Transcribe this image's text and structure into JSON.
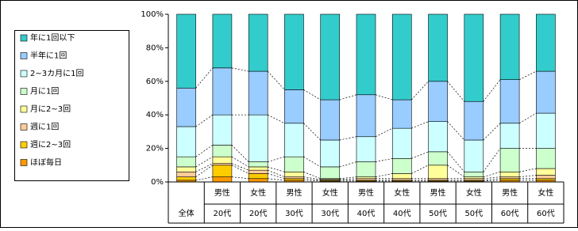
{
  "chart_data": {
    "type": "stacked_bar_100",
    "categories": [
      [
        "全体"
      ],
      [
        "男性",
        "20代"
      ],
      [
        "女性",
        "20代"
      ],
      [
        "男性",
        "30代"
      ],
      [
        "女性",
        "30代"
      ],
      [
        "男性",
        "40代"
      ],
      [
        "女性",
        "40代"
      ],
      [
        "男性",
        "50代"
      ],
      [
        "女性",
        "50代"
      ],
      [
        "男性",
        "60代"
      ],
      [
        "女性",
        "60代"
      ]
    ],
    "series": [
      {
        "name": "ほぼ毎日",
        "color": "#ff9900",
        "values": [
          1,
          3,
          2,
          1,
          0.5,
          0.5,
          0.5,
          0.5,
          0.5,
          1,
          1
        ]
      },
      {
        "name": "週に2~3回",
        "color": "#ffcc00",
        "values": [
          2,
          7,
          3,
          1,
          0.5,
          0.5,
          0.5,
          0.5,
          0.5,
          1,
          1
        ]
      },
      {
        "name": "週に1回",
        "color": "#ffcc99",
        "values": [
          3,
          1,
          2,
          1,
          0.5,
          1,
          1,
          1,
          1,
          1,
          2
        ]
      },
      {
        "name": "月に2~3回",
        "color": "#ffff99",
        "values": [
          3,
          4,
          2,
          3,
          0.5,
          1,
          3,
          8,
          1,
          3,
          4
        ]
      },
      {
        "name": "月に1回",
        "color": "#ccffcc",
        "values": [
          6,
          7,
          3,
          9,
          7,
          9,
          9,
          8,
          3,
          14,
          12
        ]
      },
      {
        "name": "2~3カ月に1回",
        "color": "#ccffff",
        "values": [
          18,
          18,
          28,
          20,
          16,
          15,
          18,
          18,
          19,
          15,
          21
        ]
      },
      {
        "name": "半年に1回",
        "color": "#99ccff",
        "values": [
          23,
          28,
          26,
          20,
          24,
          25,
          17,
          24,
          23,
          26,
          25
        ]
      },
      {
        "name": "年に1回以下",
        "color": "#33cccc",
        "values": [
          44,
          32,
          34,
          45,
          51,
          48,
          51,
          40,
          52,
          39,
          34
        ]
      }
    ],
    "ylim": [
      0,
      100
    ],
    "yticks": [
      {
        "value": 0,
        "label": "0%"
      },
      {
        "value": 20,
        "label": "20%"
      },
      {
        "value": 40,
        "label": "40%"
      },
      {
        "value": 60,
        "label": "60%"
      },
      {
        "value": 80,
        "label": "80%"
      },
      {
        "value": 100,
        "label": "100%"
      }
    ],
    "legend": "left"
  }
}
